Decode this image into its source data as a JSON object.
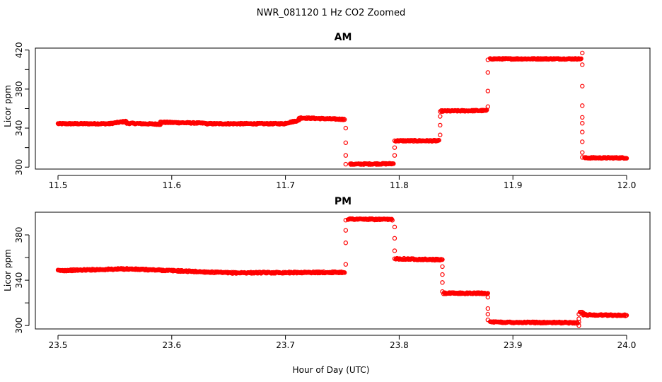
{
  "figure": {
    "title": "NWR_081120  1 Hz CO2 Zoomed",
    "xlabel": "Hour of Day (UTC)",
    "point_color": "#ff0000"
  },
  "chart_data": [
    {
      "type": "scatter",
      "title": "AM",
      "xlabel": "Hour of Day (UTC)",
      "ylabel": "Licor ppm",
      "xlim": [
        11.5,
        12.0
      ],
      "ylim": [
        298,
        422
      ],
      "x_ticks": [
        11.5,
        11.6,
        11.7,
        11.8,
        11.9,
        12.0
      ],
      "x_tick_labels": [
        "11.5",
        "11.6",
        "11.7",
        "11.8",
        "11.9",
        "12.0"
      ],
      "y_ticks": [
        300,
        320,
        340,
        360,
        380,
        400,
        420
      ],
      "y_tick_labels": [
        "300",
        "",
        "340",
        "",
        "380",
        "",
        "420"
      ],
      "series": [
        {
          "name": "CO2",
          "segments": [
            {
              "x": [
                11.5,
                11.545
              ],
              "y": [
                344.5,
                344.5
              ]
            },
            {
              "x": [
                11.545,
                11.56
              ],
              "y": [
                344.5,
                347.0
              ]
            },
            {
              "x": [
                11.56,
                11.59
              ],
              "y": [
                345.0,
                344.0
              ]
            },
            {
              "x": [
                11.59,
                11.63
              ],
              "y": [
                346.0,
                345.0
              ]
            },
            {
              "x": [
                11.63,
                11.7
              ],
              "y": [
                344.5,
                344.5
              ]
            },
            {
              "x": [
                11.7,
                11.712
              ],
              "y": [
                345.0,
                348.0
              ]
            },
            {
              "x": [
                11.712,
                11.752
              ],
              "y": [
                350.5,
                349.0
              ]
            },
            {
              "x": [
                11.757,
                11.795
              ],
              "y": [
                303.0,
                303.5
              ]
            },
            {
              "x": [
                11.797,
                11.835
              ],
              "y": [
                327.0,
                327.0
              ]
            },
            {
              "x": [
                11.837,
                11.877
              ],
              "y": [
                357.5,
                358.0
              ]
            },
            {
              "x": [
                11.88,
                11.96
              ],
              "y": [
                411.0,
                411.0
              ]
            },
            {
              "x": [
                11.963,
                12.0
              ],
              "y": [
                309.5,
                309.5
              ]
            }
          ],
          "transitions": [
            {
              "x": 11.753,
              "y": [
                340,
                325,
                312,
                303
              ]
            },
            {
              "x": 11.796,
              "y": [
                312,
                320,
                327
              ]
            },
            {
              "x": 11.836,
              "y": [
                333,
                343,
                352,
                357
              ]
            },
            {
              "x": 11.878,
              "y": [
                362,
                378,
                397,
                410
              ]
            },
            {
              "x": 11.961,
              "y": [
                417,
                405,
                383,
                363,
                351,
                345,
                336,
                326,
                315,
                310
              ]
            }
          ]
        }
      ]
    },
    {
      "type": "scatter",
      "title": "PM",
      "xlabel": "Hour of Day (UTC)",
      "ylabel": "Licor ppm",
      "xlim": [
        23.5,
        24.0
      ],
      "ylim": [
        297,
        400
      ],
      "x_ticks": [
        23.5,
        23.6,
        23.7,
        23.8,
        23.9,
        24.0
      ],
      "x_tick_labels": [
        "23.5",
        "23.6",
        "23.7",
        "23.8",
        "23.9",
        "24.0"
      ],
      "y_ticks": [
        300,
        320,
        340,
        360,
        380
      ],
      "y_tick_labels": [
        "300",
        "",
        "340",
        "",
        "380"
      ],
      "series": [
        {
          "name": "CO2",
          "segments": [
            {
              "x": [
                23.5,
                23.56
              ],
              "y": [
                348.5,
                350.0
              ]
            },
            {
              "x": [
                23.56,
                23.6
              ],
              "y": [
                350.0,
                348.5
              ]
            },
            {
              "x": [
                23.6,
                23.65
              ],
              "y": [
                348.5,
                346.5
              ]
            },
            {
              "x": [
                23.65,
                23.752
              ],
              "y": [
                346.5,
                347.0
              ]
            },
            {
              "x": [
                23.755,
                23.794
              ],
              "y": [
                394.0,
                393.5
              ]
            },
            {
              "x": [
                23.797,
                23.838
              ],
              "y": [
                359.0,
                358.0
              ]
            },
            {
              "x": [
                23.839,
                23.878
              ],
              "y": [
                328.5,
                328.5
              ]
            },
            {
              "x": [
                23.88,
                23.957
              ],
              "y": [
                303.0,
                302.5
              ]
            },
            {
              "x": [
                23.959,
                23.962
              ],
              "y": [
                312.0,
                311.0
              ]
            },
            {
              "x": [
                23.962,
                24.0
              ],
              "y": [
                309.5,
                309.0
              ]
            }
          ],
          "transitions": [
            {
              "x": 23.753,
              "y": [
                354,
                373,
                384,
                393
              ]
            },
            {
              "x": 23.796,
              "y": [
                387,
                377,
                366,
                359
              ]
            },
            {
              "x": 23.838,
              "y": [
                352,
                345,
                338,
                330
              ]
            },
            {
              "x": 23.878,
              "y": [
                325,
                315,
                310,
                305
              ]
            },
            {
              "x": 23.958,
              "y": [
                300,
                303,
                306,
                310
              ]
            }
          ]
        }
      ]
    }
  ]
}
